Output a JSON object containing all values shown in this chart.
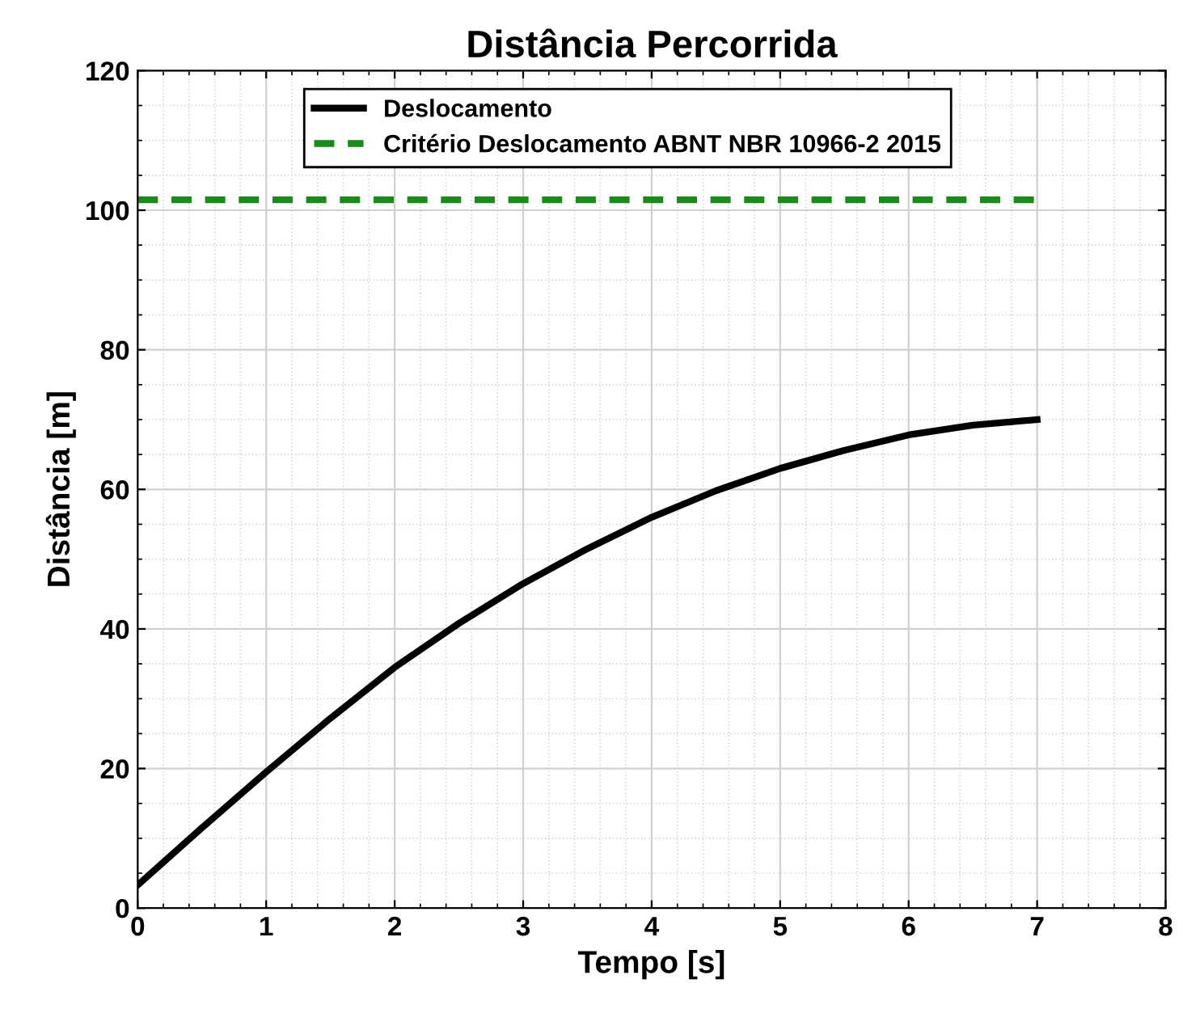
{
  "chart_data": {
    "type": "line",
    "title": "Distância Percorrida",
    "xlabel": "Tempo [s]",
    "ylabel": "Distância [m]",
    "xlim": [
      0,
      8
    ],
    "xticks": [
      0,
      1,
      2,
      3,
      4,
      5,
      6,
      7,
      8
    ],
    "ylim": [
      0,
      120
    ],
    "yticks": [
      0,
      20,
      40,
      60,
      80,
      100,
      120
    ],
    "grid": true,
    "legend": "top",
    "marker": "none",
    "series": [
      {
        "name": "Deslocamento",
        "color": "#000000",
        "line_style": "solid",
        "x": [
          0,
          0.5,
          1,
          1.5,
          2,
          2.5,
          3,
          3.5,
          4,
          4.5,
          5,
          5.5,
          6,
          6.5,
          7
        ],
        "values": [
          3.3,
          11.5,
          19.5,
          27.2,
          34.5,
          40.8,
          46.5,
          51.5,
          56,
          59.8,
          63,
          65.6,
          67.8,
          69.2,
          70
        ]
      },
      {
        "name": "Critério Deslocamento ABNT NBR 10966-2 2015",
        "color": "#1a8a1a",
        "line_style": "dashed",
        "x": [
          0,
          7
        ],
        "values": [
          101.5,
          101.5
        ]
      }
    ]
  }
}
